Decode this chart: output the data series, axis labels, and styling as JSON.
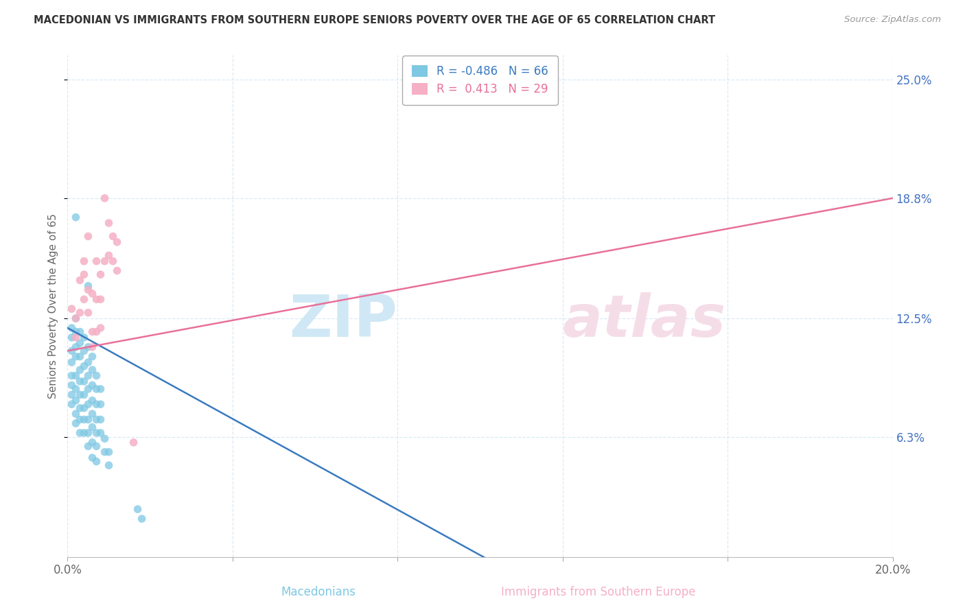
{
  "title": "MACEDONIAN VS IMMIGRANTS FROM SOUTHERN EUROPE SENIORS POVERTY OVER THE AGE OF 65 CORRELATION CHART",
  "source": "Source: ZipAtlas.com",
  "ylabel": "Seniors Poverty Over the Age of 65",
  "xlabel_macedonians": "Macedonians",
  "xlabel_immigrants": "Immigrants from Southern Europe",
  "xmin": 0.0,
  "xmax": 0.2,
  "ymin": 0.0,
  "ymax": 0.263,
  "ytick_vals": [
    0.063,
    0.125,
    0.188,
    0.25
  ],
  "ytick_labels": [
    "6.3%",
    "12.5%",
    "18.8%",
    "25.0%"
  ],
  "xtick_vals": [
    0.0,
    0.04,
    0.08,
    0.12,
    0.16,
    0.2
  ],
  "xtick_labels": [
    "0.0%",
    "",
    "",
    "",
    "",
    "20.0%"
  ],
  "color_macedonian": "#7ec8e3",
  "color_immigrant": "#f5b0c5",
  "color_line_macedonian": "#3a7abf",
  "color_line_immigrant": "#e8709a",
  "grid_color": "#d5e8f5",
  "title_color": "#333333",
  "axis_label_color": "#666666",
  "tick_label_color": "#4472c4",
  "source_color": "#999999",
  "macedonian_points": [
    [
      0.001,
      0.12
    ],
    [
      0.001,
      0.115
    ],
    [
      0.001,
      0.108
    ],
    [
      0.001,
      0.102
    ],
    [
      0.001,
      0.095
    ],
    [
      0.001,
      0.09
    ],
    [
      0.001,
      0.085
    ],
    [
      0.001,
      0.08
    ],
    [
      0.002,
      0.178
    ],
    [
      0.002,
      0.125
    ],
    [
      0.002,
      0.118
    ],
    [
      0.002,
      0.11
    ],
    [
      0.002,
      0.105
    ],
    [
      0.002,
      0.095
    ],
    [
      0.002,
      0.088
    ],
    [
      0.002,
      0.082
    ],
    [
      0.002,
      0.075
    ],
    [
      0.002,
      0.07
    ],
    [
      0.003,
      0.118
    ],
    [
      0.003,
      0.112
    ],
    [
      0.003,
      0.105
    ],
    [
      0.003,
      0.098
    ],
    [
      0.003,
      0.092
    ],
    [
      0.003,
      0.085
    ],
    [
      0.003,
      0.078
    ],
    [
      0.003,
      0.072
    ],
    [
      0.003,
      0.065
    ],
    [
      0.004,
      0.115
    ],
    [
      0.004,
      0.108
    ],
    [
      0.004,
      0.1
    ],
    [
      0.004,
      0.092
    ],
    [
      0.004,
      0.085
    ],
    [
      0.004,
      0.078
    ],
    [
      0.004,
      0.072
    ],
    [
      0.004,
      0.065
    ],
    [
      0.005,
      0.142
    ],
    [
      0.005,
      0.11
    ],
    [
      0.005,
      0.102
    ],
    [
      0.005,
      0.095
    ],
    [
      0.005,
      0.088
    ],
    [
      0.005,
      0.08
    ],
    [
      0.005,
      0.072
    ],
    [
      0.005,
      0.065
    ],
    [
      0.005,
      0.058
    ],
    [
      0.006,
      0.105
    ],
    [
      0.006,
      0.098
    ],
    [
      0.006,
      0.09
    ],
    [
      0.006,
      0.082
    ],
    [
      0.006,
      0.075
    ],
    [
      0.006,
      0.068
    ],
    [
      0.006,
      0.06
    ],
    [
      0.006,
      0.052
    ],
    [
      0.007,
      0.095
    ],
    [
      0.007,
      0.088
    ],
    [
      0.007,
      0.08
    ],
    [
      0.007,
      0.072
    ],
    [
      0.007,
      0.065
    ],
    [
      0.007,
      0.058
    ],
    [
      0.007,
      0.05
    ],
    [
      0.008,
      0.088
    ],
    [
      0.008,
      0.08
    ],
    [
      0.008,
      0.072
    ],
    [
      0.008,
      0.065
    ],
    [
      0.009,
      0.062
    ],
    [
      0.009,
      0.055
    ],
    [
      0.01,
      0.055
    ],
    [
      0.01,
      0.048
    ],
    [
      0.017,
      0.025
    ],
    [
      0.018,
      0.02
    ]
  ],
  "immigrant_points": [
    [
      0.001,
      0.13
    ],
    [
      0.002,
      0.125
    ],
    [
      0.002,
      0.115
    ],
    [
      0.003,
      0.145
    ],
    [
      0.003,
      0.128
    ],
    [
      0.004,
      0.155
    ],
    [
      0.004,
      0.148
    ],
    [
      0.004,
      0.135
    ],
    [
      0.005,
      0.168
    ],
    [
      0.005,
      0.14
    ],
    [
      0.005,
      0.128
    ],
    [
      0.006,
      0.138
    ],
    [
      0.006,
      0.118
    ],
    [
      0.006,
      0.11
    ],
    [
      0.007,
      0.155
    ],
    [
      0.007,
      0.135
    ],
    [
      0.007,
      0.118
    ],
    [
      0.008,
      0.148
    ],
    [
      0.008,
      0.135
    ],
    [
      0.008,
      0.12
    ],
    [
      0.009,
      0.155
    ],
    [
      0.009,
      0.188
    ],
    [
      0.01,
      0.175
    ],
    [
      0.01,
      0.158
    ],
    [
      0.011,
      0.168
    ],
    [
      0.011,
      0.155
    ],
    [
      0.012,
      0.165
    ],
    [
      0.012,
      0.15
    ],
    [
      0.016,
      0.06
    ]
  ],
  "mac_line_x0": 0.0,
  "mac_line_y0": 0.12,
  "mac_line_x1": 0.105,
  "mac_line_y1": -0.005,
  "imm_line_x0": 0.0,
  "imm_line_y0": 0.108,
  "imm_line_x1": 0.2,
  "imm_line_y1": 0.188
}
